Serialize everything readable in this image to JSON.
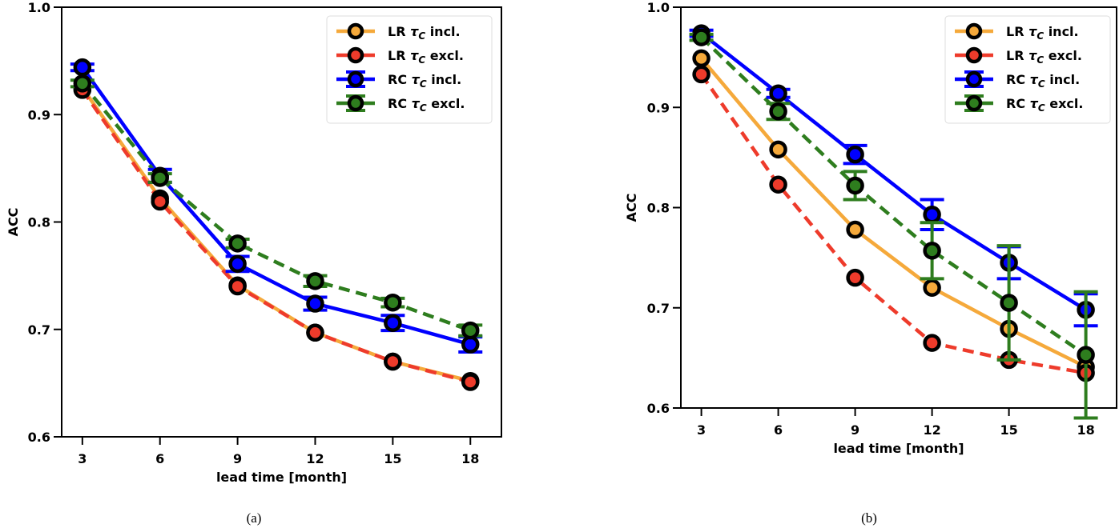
{
  "chart_data": [
    {
      "type": "line",
      "caption": "(a)",
      "xlabel": "lead time [month]",
      "ylabel": "ACC",
      "x": [
        3,
        6,
        9,
        12,
        15,
        18
      ],
      "xticks": [
        "3",
        "6",
        "9",
        "12",
        "15",
        "18"
      ],
      "yticks": [
        "0.6",
        "0.7",
        "0.8",
        "0.9",
        "1.0"
      ],
      "ylim": [
        0.6,
        1.0
      ],
      "xlim": [
        2.2,
        19.2
      ],
      "legend_position": "top-right",
      "series": [
        {
          "name": "LR τC incl.",
          "label_main": "LR ",
          "label_sym": "τ",
          "label_sub": "C",
          "label_end": " incl.",
          "color": "#f5a93b",
          "dash": false,
          "values": [
            0.925,
            0.822,
            0.741,
            0.697,
            0.67,
            0.652
          ],
          "errors": null
        },
        {
          "name": "LR τC excl.",
          "label_main": "LR ",
          "label_sym": "τ",
          "label_sub": "C",
          "label_end": " excl.",
          "color": "#ee3b2b",
          "dash": true,
          "values": [
            0.923,
            0.819,
            0.74,
            0.697,
            0.67,
            0.651
          ],
          "errors": null
        },
        {
          "name": "RC τC incl.",
          "label_main": "RC ",
          "label_sym": "τ",
          "label_sub": "C",
          "label_end": " incl.",
          "color": "#0000ff",
          "dash": false,
          "values": [
            0.944,
            0.843,
            0.761,
            0.724,
            0.706,
            0.686
          ],
          "errors": [
            0.003,
            0.006,
            0.007,
            0.006,
            0.007,
            0.007
          ]
        },
        {
          "name": "RC τC excl.",
          "label_main": "RC ",
          "label_sym": "τ",
          "label_sub": "C",
          "label_end": " excl.",
          "color": "#2e7d1e",
          "dash": true,
          "values": [
            0.929,
            0.841,
            0.78,
            0.745,
            0.725,
            0.699
          ],
          "errors": [
            0.003,
            0.004,
            0.004,
            0.005,
            0.004,
            0.005
          ]
        }
      ]
    },
    {
      "type": "line",
      "caption": "(b)",
      "xlabel": "lead time [month]",
      "ylabel": "ACC",
      "x": [
        3,
        6,
        9,
        12,
        15,
        18
      ],
      "xticks": [
        "3",
        "6",
        "9",
        "12",
        "15",
        "18"
      ],
      "yticks": [
        "0.6",
        "0.7",
        "0.8",
        "0.9",
        "1.0"
      ],
      "ylim": [
        0.6,
        1.0
      ],
      "xlim": [
        2.2,
        19.2
      ],
      "legend_position": "top-right",
      "series": [
        {
          "name": "LR τC incl.",
          "label_main": "LR ",
          "label_sym": "τ",
          "label_sub": "C",
          "label_end": " incl.",
          "color": "#f5a93b",
          "dash": false,
          "values": [
            0.949,
            0.858,
            0.778,
            0.72,
            0.679,
            0.641
          ],
          "errors": null
        },
        {
          "name": "LR τC excl.",
          "label_main": "LR ",
          "label_sym": "τ",
          "label_sub": "C",
          "label_end": " excl.",
          "color": "#ee3b2b",
          "dash": true,
          "values": [
            0.933,
            0.823,
            0.73,
            0.665,
            0.648,
            0.635
          ],
          "errors": null
        },
        {
          "name": "RC τC incl.",
          "label_main": "RC ",
          "label_sym": "τ",
          "label_sub": "C",
          "label_end": " incl.",
          "color": "#0000ff",
          "dash": false,
          "values": [
            0.974,
            0.914,
            0.853,
            0.793,
            0.745,
            0.698
          ],
          "errors": [
            0.003,
            0.004,
            0.009,
            0.015,
            0.016,
            0.016
          ]
        },
        {
          "name": "RC τC excl.",
          "label_main": "RC ",
          "label_sym": "τ",
          "label_sub": "C",
          "label_end": " excl.",
          "color": "#2e7d1e",
          "dash": true,
          "values": [
            0.97,
            0.896,
            0.822,
            0.757,
            0.705,
            0.653
          ],
          "errors": [
            0.003,
            0.008,
            0.014,
            0.028,
            0.057,
            0.063
          ]
        }
      ]
    }
  ]
}
